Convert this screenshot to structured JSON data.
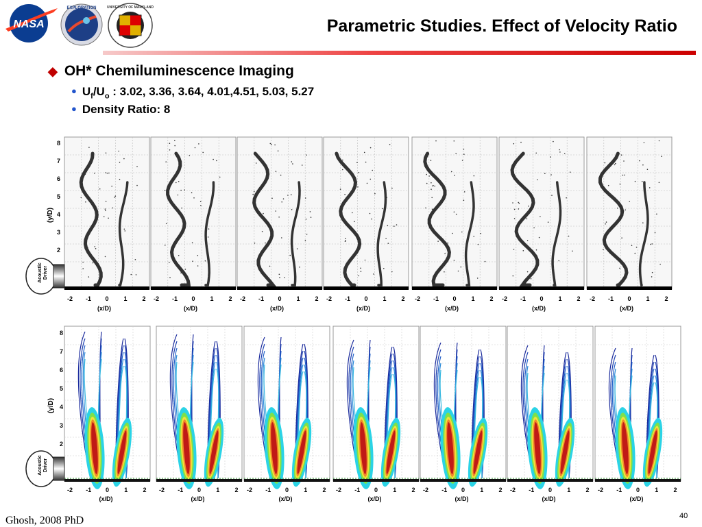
{
  "header": {
    "title": "Parametric Studies. Effect of Velocity Ratio",
    "logos": [
      {
        "name": "nasa-logo",
        "text": "NASA"
      },
      {
        "name": "exploration-logo",
        "text": "EXPLORATION"
      },
      {
        "name": "umd-logo",
        "text": "UNIVERSITY OF MARYLAND"
      }
    ]
  },
  "bullets": {
    "main": "OH* Chemiluminescence Imaging",
    "sub1_pre": "U",
    "sub1_sub1": "f",
    "sub1_mid": "/U",
    "sub1_sub2": "o",
    "sub1_post": " : 3.02, 3.36, 3.64, 4.01,4.51, 5.03, 5.27",
    "sub2": "Density Ratio: 8"
  },
  "figure": {
    "y_axis_label": "(y/D)",
    "x_axis_label": "(x/D)",
    "y_ticks": [
      "8",
      "7",
      "6",
      "5",
      "4",
      "3",
      "2"
    ],
    "x_ticks": [
      "-2",
      "-1",
      "0",
      "1",
      "2"
    ],
    "driver_label_1": "Acoustic",
    "driver_label_2": "Driver",
    "panel_count": 7
  },
  "footer": {
    "author": "Ghosh, 2008 PhD",
    "page": "40"
  },
  "colors": {
    "accent": "#cc0000",
    "bullet_blue": "#2255cc",
    "contour_outer": "#1a2a9c"
  }
}
